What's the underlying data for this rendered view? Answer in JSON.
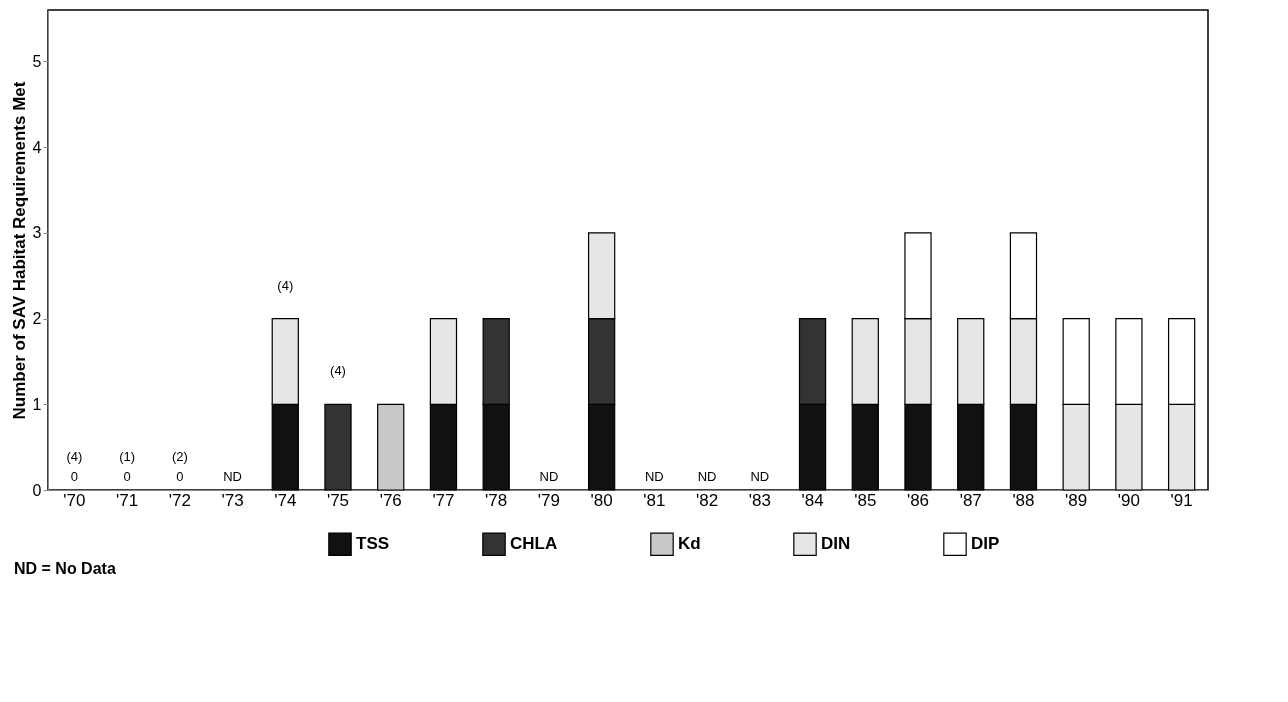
{
  "chart_data": {
    "type": "bar",
    "stacked": true,
    "ylabel": "Number of SAV Habitat Requirements Met",
    "categories": [
      "'70",
      "'71",
      "'72",
      "'73",
      "'74",
      "'75",
      "'76",
      "'77",
      "'78",
      "'79",
      "'80",
      "'81",
      "'82",
      "'83",
      "'84",
      "'85",
      "'86",
      "'87",
      "'88",
      "'89",
      "'90",
      "'91"
    ],
    "series": [
      {
        "name": "TSS",
        "color": "#111111",
        "values": [
          0,
          0,
          0,
          null,
          1,
          0,
          0,
          1,
          1,
          null,
          1,
          null,
          null,
          null,
          1,
          1,
          1,
          1,
          1,
          0,
          0,
          0
        ],
        "value_labels": [
          "0",
          "0",
          "0",
          "ND",
          null,
          null,
          null,
          null,
          null,
          "ND",
          null,
          "ND",
          "ND",
          "ND",
          null,
          null,
          null,
          null,
          null,
          null,
          null,
          null
        ]
      },
      {
        "name": "CHLA",
        "color": "#333333",
        "values": [
          0,
          0,
          0,
          null,
          0,
          1,
          0,
          0,
          1,
          null,
          1,
          null,
          null,
          null,
          1,
          0,
          0,
          0,
          0,
          0,
          0,
          0
        ]
      },
      {
        "name": "Kd",
        "color": "#c8c8c8",
        "values": [
          0,
          0,
          0,
          null,
          0,
          0,
          1,
          0,
          0,
          null,
          0,
          null,
          null,
          null,
          0,
          0,
          0,
          0,
          0,
          0,
          0,
          0
        ]
      },
      {
        "name": "DIN",
        "color": "#e6e6e6",
        "values": [
          0,
          0,
          0,
          null,
          1,
          0,
          0,
          1,
          0,
          null,
          1,
          null,
          null,
          null,
          0,
          1,
          1,
          1,
          1,
          1,
          1,
          1
        ]
      },
      {
        "name": "DIP",
        "color": "#ffffff",
        "values": [
          0,
          0,
          0,
          null,
          0,
          0,
          0,
          0,
          0,
          null,
          0,
          null,
          null,
          null,
          0,
          0,
          1,
          0,
          1,
          1,
          1,
          1
        ]
      }
    ],
    "ylim": [
      0,
      5.6
    ],
    "yticks": [
      0,
      1,
      2,
      3,
      4,
      5
    ],
    "grid": false,
    "legend": "bottom",
    "annotations": [
      {
        "text": "(4)",
        "x": "'70",
        "y": 0
      },
      {
        "text": "(1)",
        "x": "'71",
        "y": 0
      },
      {
        "text": "(2)",
        "x": "'72",
        "y": 0
      },
      {
        "text": "(4)",
        "x": "'74",
        "y": 2
      },
      {
        "text": "(4)",
        "x": "'75",
        "y": 1
      },
      "ND = No Data"
    ]
  }
}
